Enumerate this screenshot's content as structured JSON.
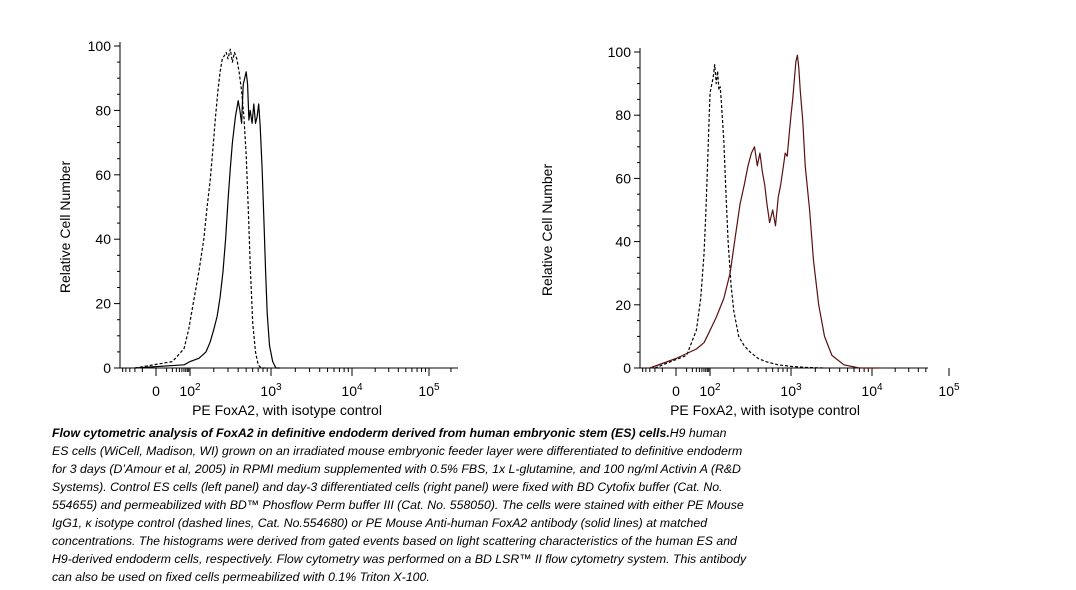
{
  "chart_data": [
    {
      "type": "line",
      "panel": "left",
      "xlabel": "PE FoxA2, with isotype control",
      "ylabel": "Relative Cell Number",
      "ylim": [
        0,
        100
      ],
      "xscale": "biexponential",
      "xlim": [
        -60,
        250000
      ],
      "y_ticks": [
        0,
        20,
        40,
        60,
        80,
        100
      ],
      "x_tick_labels": [
        {
          "value": 0,
          "base": "0",
          "exp": ""
        },
        {
          "value": 100,
          "base": "10",
          "exp": "2"
        },
        {
          "value": 1000,
          "base": "10",
          "exp": "3"
        },
        {
          "value": 10000,
          "base": "10",
          "exp": "4"
        },
        {
          "value": 100000,
          "base": "10",
          "exp": "5"
        }
      ],
      "grid": false,
      "series": [
        {
          "style": "dashed",
          "color": "#000000",
          "x": [
            -20,
            20,
            60,
            90,
            110,
            130,
            150,
            165,
            180,
            195,
            210,
            225,
            240,
            255,
            270,
            285,
            300,
            320,
            340,
            360,
            385,
            410,
            440,
            470,
            500,
            530,
            560,
            600,
            650,
            700,
            760,
            900
          ],
          "y": [
            0,
            2,
            6,
            12,
            20,
            30,
            40,
            50,
            58,
            68,
            78,
            86,
            92,
            96,
            97,
            98,
            96,
            99,
            95,
            98,
            96,
            92,
            86,
            78,
            66,
            50,
            32,
            14,
            5,
            1,
            0,
            0
          ]
        },
        {
          "style": "solid",
          "color": "#000000",
          "x": [
            -20,
            60,
            100,
            130,
            160,
            180,
            200,
            220,
            240,
            260,
            280,
            300,
            320,
            340,
            370,
            400,
            420,
            440,
            460,
            480,
            500,
            520,
            540,
            560,
            590,
            620,
            650,
            680,
            710,
            740,
            780,
            820,
            860,
            900,
            960,
            1050,
            1150,
            1300
          ],
          "y": [
            0,
            1,
            2,
            3,
            5,
            8,
            12,
            16,
            22,
            30,
            40,
            52,
            62,
            70,
            78,
            83,
            80,
            76,
            88,
            90,
            92,
            88,
            77,
            80,
            76,
            82,
            76,
            78,
            82,
            75,
            62,
            46,
            30,
            17,
            7,
            2,
            0,
            0
          ]
        }
      ]
    },
    {
      "type": "line",
      "panel": "right",
      "xlabel": "PE FoxA2, with isotype control",
      "ylabel": "Relative Cell Number",
      "ylim": [
        0,
        100
      ],
      "xscale": "biexponential",
      "xlim": [
        -60,
        250000
      ],
      "y_ticks": [
        0,
        20,
        40,
        60,
        80,
        100
      ],
      "x_tick_labels": [
        {
          "value": 0,
          "base": "0",
          "exp": ""
        },
        {
          "value": 100,
          "base": "10",
          "exp": "2"
        },
        {
          "value": 1000,
          "base": "10",
          "exp": "3"
        },
        {
          "value": 10000,
          "base": "10",
          "exp": "4"
        },
        {
          "value": 100000,
          "base": "10",
          "exp": "5"
        }
      ],
      "grid": false,
      "series": [
        {
          "style": "dashed",
          "color": "#000000",
          "x": [
            -20,
            10,
            30,
            45,
            60,
            70,
            80,
            90,
            100,
            110,
            115,
            120,
            125,
            130,
            135,
            140,
            150,
            160,
            170,
            185,
            200,
            230,
            270,
            320,
            400,
            500,
            700,
            1000,
            1500,
            2500
          ],
          "y": [
            0,
            4,
            12,
            22,
            36,
            48,
            62,
            75,
            87,
            92,
            96,
            90,
            94,
            88,
            89,
            84,
            72,
            55,
            40,
            26,
            18,
            10,
            7,
            5,
            3,
            2,
            1,
            0.5,
            0.2,
            0
          ]
        },
        {
          "style": "solid",
          "color": "#5a1010",
          "x": [
            -30,
            0,
            30,
            60,
            90,
            120,
            150,
            180,
            210,
            240,
            270,
            300,
            330,
            360,
            390,
            420,
            450,
            480,
            510,
            550,
            600,
            650,
            700,
            750,
            800,
            850,
            900,
            950,
            1000,
            1050,
            1100,
            1150,
            1200,
            1250,
            1300,
            1400,
            1500,
            1700,
            1900,
            2200,
            2600,
            3200,
            4500,
            7000,
            12000
          ],
          "y": [
            0,
            3,
            6,
            8,
            11,
            16,
            22,
            30,
            42,
            52,
            58,
            64,
            68,
            70,
            64,
            68,
            62,
            58,
            52,
            46,
            50,
            45,
            54,
            58,
            63,
            68,
            67,
            74,
            80,
            85,
            91,
            97,
            99,
            95,
            88,
            78,
            64,
            50,
            34,
            20,
            10,
            4,
            1,
            0,
            0
          ]
        }
      ]
    }
  ],
  "caption": {
    "bold": "Flow cytometric analysis of FoxA2 in definitive endoderm derived from human embryonic stem (ES) cells.",
    "lines": [
      "H9 human",
      "ES cells (WiCell, Madison, WI) grown on an irradiated mouse embryonic feeder layer were differentiated to definitive endoderm",
      "for 3 days (D’Amour et al, 2005) in RPMI medium supplemented with 0.5% FBS, 1x L-glutamine, and 100 ng/ml Activin A (R&D",
      "Systems). Control ES cells (left panel) and day-3 differentiated cells (right panel) were fixed with BD Cytofix buffer (Cat. No.",
      "554655) and permeabilized with BD™ Phosflow Perm buffer III (Cat. No. 558050). The cells were stained with either PE Mouse",
      "IgG1, κ isotype control (dashed lines, Cat. No.554680) or PE Mouse Anti-human FoxA2 antibody (solid lines) at matched",
      "concentrations. The histograms were derived from gated events based on light scattering characteristics of the human ES and",
      "H9-derived endoderm cells, respectively. Flow cytometry was performed on a BD LSR™ II flow cytometry system. This antibody",
      "can also be used on fixed cells permeabilized with 0.1% Triton X-100."
    ]
  }
}
